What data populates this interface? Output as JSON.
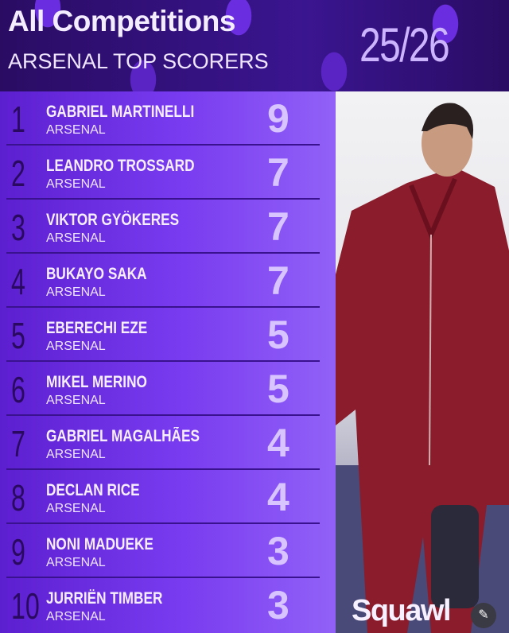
{
  "header": {
    "title": "All Competitions",
    "subtitle": "ARSENAL TOP SCORERS",
    "season": "25/26"
  },
  "players": [
    {
      "rank": "1",
      "name": "GABRIEL MARTINELLI",
      "club": "ARSENAL",
      "goals": "9"
    },
    {
      "rank": "2",
      "name": "LEANDRO TROSSARD",
      "club": "ARSENAL",
      "goals": "7"
    },
    {
      "rank": "3",
      "name": "VIKTOR GYÖKERES",
      "club": "ARSENAL",
      "goals": "7"
    },
    {
      "rank": "4",
      "name": "BUKAYO SAKA",
      "club": "ARSENAL",
      "goals": "7"
    },
    {
      "rank": "5",
      "name": "EBERECHI EZE",
      "club": "ARSENAL",
      "goals": "5"
    },
    {
      "rank": "6",
      "name": "MIKEL MERINO",
      "club": "ARSENAL",
      "goals": "5"
    },
    {
      "rank": "7",
      "name": "GABRIEL MAGALHÃES",
      "club": "ARSENAL",
      "goals": "4"
    },
    {
      "rank": "8",
      "name": "DECLAN RICE",
      "club": "ARSENAL",
      "goals": "4"
    },
    {
      "rank": "9",
      "name": "NONI MADUEKE",
      "club": "ARSENAL",
      "goals": "3"
    },
    {
      "rank": "10",
      "name": "JURRIËN TIMBER",
      "club": "ARSENAL",
      "goals": "3"
    }
  ],
  "brand": {
    "logo": "Squawl",
    "edit_icon": "image-edit-icon"
  },
  "colors": {
    "accent": "#7a3cf0",
    "header": "#2a0c63",
    "kit": "#8a1c2c"
  }
}
